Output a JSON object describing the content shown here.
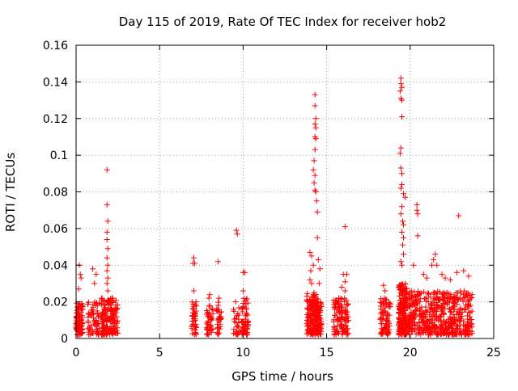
{
  "chart_data": {
    "type": "scatter",
    "title": "Day 115 of 2019, Rate Of TEC Index for receiver hob2",
    "xlabel": "GPS time / hours",
    "ylabel": "ROTI / TECUs",
    "xlim": [
      0,
      25
    ],
    "ylim": [
      0,
      0.16
    ],
    "x_ticks": [
      0,
      5,
      10,
      15,
      20,
      25
    ],
    "x_tick_labels": [
      "0",
      "5",
      "10",
      "15",
      "20",
      "25"
    ],
    "y_ticks": [
      0,
      0.02,
      0.04,
      0.06,
      0.08,
      0.1,
      0.12,
      0.14,
      0.16
    ],
    "y_tick_labels": [
      "0",
      "0.02",
      "0.04",
      "0.06",
      "0.08",
      "0.1",
      "0.12",
      "0.14",
      "0.16"
    ],
    "grid": true,
    "marker": "+",
    "color": "#ff0000",
    "clusters": [
      {
        "x_range": [
          0.0,
          0.4
        ],
        "n": 90,
        "base_max": 0.02,
        "outliers": [
          [
            0.2,
            0.04
          ],
          [
            0.25,
            0.035
          ],
          [
            0.15,
            0.027
          ],
          [
            0.3,
            0.033
          ]
        ]
      },
      {
        "x_range": [
          0.7,
          1.4
        ],
        "n": 70,
        "base_max": 0.02,
        "outliers": [
          [
            1.0,
            0.038
          ],
          [
            1.2,
            0.035
          ],
          [
            1.1,
            0.03
          ]
        ]
      },
      {
        "x_range": [
          1.5,
          2.5
        ],
        "n": 170,
        "base_max": 0.022,
        "outliers": [
          [
            1.85,
            0.092
          ],
          [
            1.85,
            0.073
          ],
          [
            1.9,
            0.064
          ],
          [
            1.85,
            0.058
          ],
          [
            1.85,
            0.054
          ],
          [
            1.9,
            0.049
          ],
          [
            1.85,
            0.044
          ],
          [
            1.9,
            0.04
          ],
          [
            1.85,
            0.037
          ],
          [
            1.9,
            0.033
          ],
          [
            1.85,
            0.03
          ],
          [
            1.9,
            0.026
          ]
        ]
      },
      {
        "x_range": [
          6.9,
          7.2
        ],
        "n": 45,
        "base_max": 0.02,
        "outliers": [
          [
            7.05,
            0.044
          ],
          [
            7.0,
            0.041
          ],
          [
            7.1,
            0.041
          ],
          [
            7.05,
            0.026
          ]
        ]
      },
      {
        "x_range": [
          7.8,
          8.2
        ],
        "n": 40,
        "base_max": 0.02,
        "outliers": [
          [
            8.0,
            0.024
          ],
          [
            7.95,
            0.022
          ]
        ]
      },
      {
        "x_range": [
          8.4,
          8.7
        ],
        "n": 30,
        "base_max": 0.02,
        "outliers": [
          [
            8.5,
            0.042
          ],
          [
            8.55,
            0.022
          ]
        ]
      },
      {
        "x_range": [
          9.4,
          9.8
        ],
        "n": 25,
        "base_max": 0.018,
        "outliers": [
          [
            9.6,
            0.059
          ],
          [
            9.65,
            0.057
          ],
          [
            9.55,
            0.02
          ]
        ]
      },
      {
        "x_range": [
          9.9,
          10.3
        ],
        "n": 55,
        "base_max": 0.022,
        "outliers": [
          [
            10.0,
            0.036
          ],
          [
            10.1,
            0.036
          ],
          [
            10.0,
            0.026
          ]
        ]
      },
      {
        "x_range": [
          13.8,
          14.5
        ],
        "n": 160,
        "base_max": 0.025,
        "outliers": [
          [
            14.3,
            0.133
          ],
          [
            14.3,
            0.127
          ],
          [
            14.35,
            0.12
          ],
          [
            14.3,
            0.117
          ],
          [
            14.35,
            0.115
          ],
          [
            14.3,
            0.11
          ],
          [
            14.35,
            0.109
          ],
          [
            14.3,
            0.103
          ],
          [
            14.25,
            0.097
          ],
          [
            14.2,
            0.092
          ],
          [
            14.3,
            0.089
          ],
          [
            14.25,
            0.085
          ],
          [
            14.3,
            0.081
          ],
          [
            14.35,
            0.08
          ],
          [
            14.4,
            0.075
          ],
          [
            14.45,
            0.069
          ],
          [
            14.45,
            0.055
          ],
          [
            14.0,
            0.047
          ],
          [
            14.1,
            0.045
          ],
          [
            14.05,
            0.037
          ],
          [
            14.2,
            0.04
          ],
          [
            14.0,
            0.032
          ],
          [
            14.1,
            0.03
          ]
        ]
      },
      {
        "x_range": [
          14.4,
          14.7
        ],
        "n": 60,
        "base_max": 0.022,
        "outliers": [
          [
            14.5,
            0.043
          ],
          [
            14.6,
            0.038
          ],
          [
            14.55,
            0.03
          ]
        ]
      },
      {
        "x_range": [
          15.4,
          16.3
        ],
        "n": 110,
        "base_max": 0.022,
        "outliers": [
          [
            16.1,
            0.061
          ],
          [
            16.0,
            0.035
          ],
          [
            16.2,
            0.035
          ],
          [
            16.1,
            0.031
          ],
          [
            15.9,
            0.028
          ],
          [
            16.1,
            0.026
          ]
        ]
      },
      {
        "x_range": [
          18.2,
          18.8
        ],
        "n": 80,
        "base_max": 0.022,
        "outliers": [
          [
            18.4,
            0.029
          ],
          [
            18.5,
            0.026
          ]
        ]
      },
      {
        "x_range": [
          19.3,
          19.8
        ],
        "n": 200,
        "base_max": 0.03,
        "outliers": [
          [
            19.45,
            0.142
          ],
          [
            19.45,
            0.139
          ],
          [
            19.5,
            0.137
          ],
          [
            19.4,
            0.135
          ],
          [
            19.45,
            0.131
          ],
          [
            19.5,
            0.13
          ],
          [
            19.5,
            0.121
          ],
          [
            19.45,
            0.104
          ],
          [
            19.4,
            0.101
          ],
          [
            19.45,
            0.093
          ],
          [
            19.5,
            0.09
          ],
          [
            19.5,
            0.084
          ],
          [
            19.45,
            0.082
          ],
          [
            19.6,
            0.079
          ],
          [
            19.7,
            0.077
          ],
          [
            19.5,
            0.072
          ],
          [
            19.45,
            0.068
          ],
          [
            19.55,
            0.064
          ],
          [
            19.6,
            0.062
          ],
          [
            19.5,
            0.058
          ],
          [
            19.6,
            0.055
          ],
          [
            19.55,
            0.051
          ],
          [
            19.6,
            0.046
          ],
          [
            19.45,
            0.042
          ],
          [
            19.5,
            0.04
          ]
        ]
      },
      {
        "x_range": [
          19.8,
          23.7
        ],
        "n": 520,
        "base_max": 0.026,
        "outliers": [
          [
            22.9,
            0.067
          ],
          [
            20.4,
            0.073
          ],
          [
            20.4,
            0.07
          ],
          [
            20.45,
            0.068
          ],
          [
            20.45,
            0.056
          ],
          [
            21.5,
            0.046
          ],
          [
            21.4,
            0.043
          ],
          [
            21.6,
            0.04
          ],
          [
            21.3,
            0.04
          ],
          [
            23.2,
            0.037
          ],
          [
            23.5,
            0.034
          ],
          [
            20.2,
            0.04
          ],
          [
            20.8,
            0.035
          ],
          [
            21.9,
            0.035
          ],
          [
            22.1,
            0.033
          ],
          [
            22.8,
            0.036
          ],
          [
            22.4,
            0.032
          ],
          [
            21.0,
            0.033
          ],
          [
            23.7,
            0.024
          ]
        ]
      }
    ]
  }
}
